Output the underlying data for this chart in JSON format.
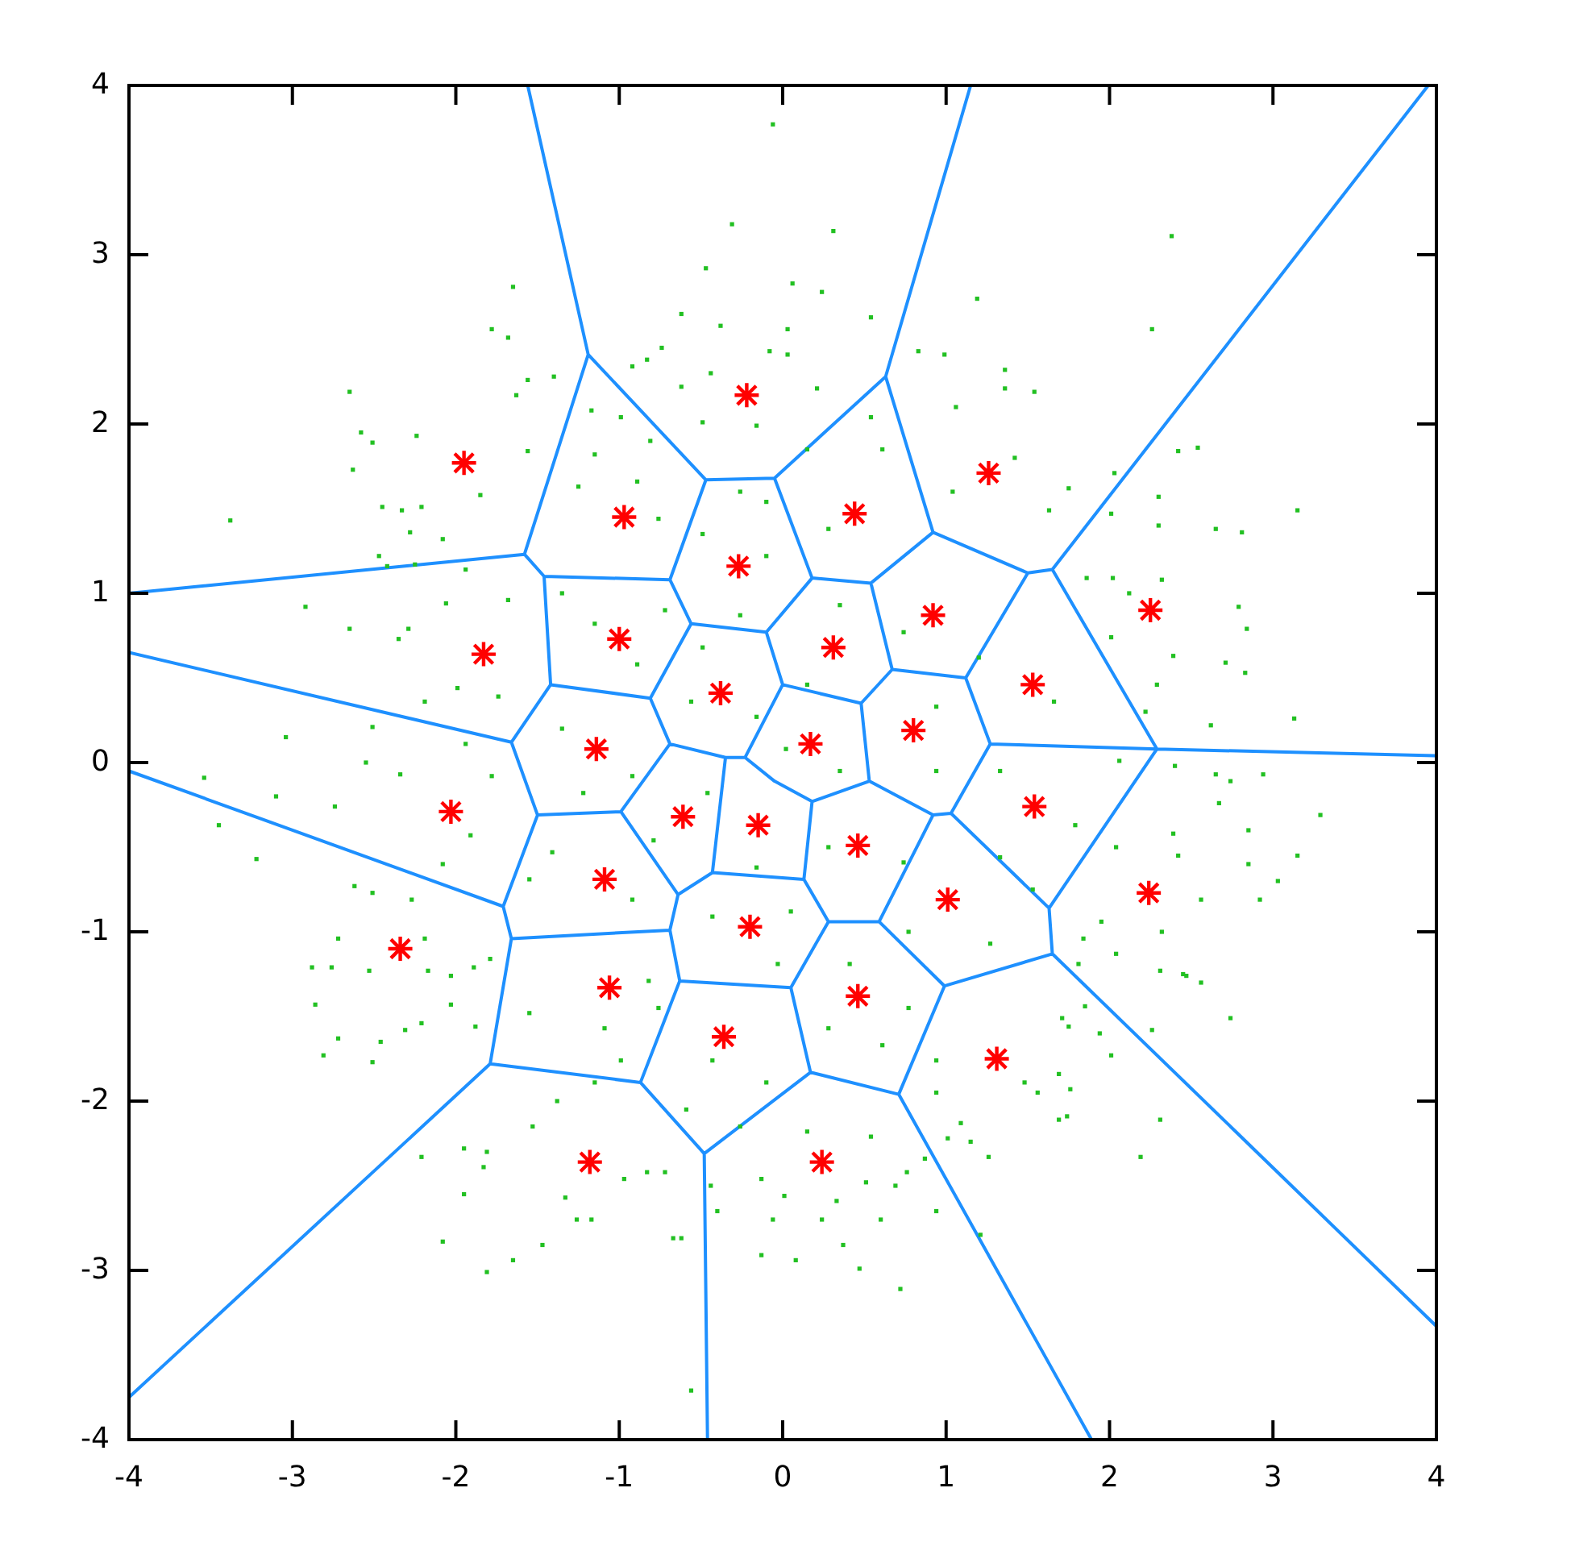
{
  "chart_data": {
    "type": "scatter",
    "xlim": [
      -4,
      4
    ],
    "ylim": [
      -4,
      4
    ],
    "xticks": [
      -4,
      -3,
      -2,
      -1,
      0,
      1,
      2,
      3,
      4
    ],
    "yticks": [
      -4,
      -3,
      -2,
      -1,
      0,
      1,
      2,
      3,
      4
    ],
    "series": [
      {
        "type": "line",
        "color": "#1e90ff",
        "marker": "none",
        "line_style": "solid",
        "x": [
          -1.56,
          -1.19,
          -1.58,
          -4,
          null,
          -1.19,
          -0.47,
          -0.05,
          0.63,
          1.15,
          null,
          0.63,
          0.92,
          1.5,
          1.65,
          3.95,
          null,
          1.65,
          2.29,
          4,
          null,
          1.5,
          1.12,
          0.67,
          0.54,
          0.92,
          null,
          1.12,
          1.27,
          2.29,
          1.63,
          1.65,
          4,
          null,
          1.63,
          1.03,
          1.27,
          null,
          1.03,
          0.92,
          0.53,
          0.48,
          0.67,
          null,
          0.92,
          0.59,
          0.99,
          1.65,
          null,
          0.59,
          0.28,
          0.13,
          0.18,
          0.53,
          null,
          0.54,
          0.18,
          -0.05,
          null,
          0.18,
          -0.1,
          0,
          0.48,
          null,
          0,
          -0.23,
          -0.05,
          0.18,
          null,
          -0.23,
          -0.35,
          -0.69,
          -0.81,
          -0.56,
          -0.1,
          null,
          -0.35,
          -0.43,
          0.13,
          null,
          -0.43,
          -0.64,
          -0.99,
          -0.69,
          null,
          -0.56,
          -0.69,
          -0.47,
          null,
          -0.69,
          -1.46,
          -1.58,
          null,
          -1.46,
          -1.42,
          -0.81,
          null,
          -1.42,
          -1.66,
          -4,
          null,
          -1.66,
          -1.5,
          -0.99,
          null,
          -1.5,
          -1.71,
          -4,
          null,
          -1.71,
          -1.66,
          -0.69,
          -0.64,
          null,
          -1.66,
          -1.79,
          -4,
          null,
          -1.79,
          -0.87,
          -0.63,
          -0.69,
          null,
          -0.63,
          0.05,
          0.28,
          null,
          0.05,
          0.17,
          0.71,
          0.99,
          null,
          0.71,
          1.89,
          null,
          0.17,
          -0.48,
          -0.87,
          null,
          -0.48,
          -0.46
        ],
        "values": [
          4,
          2.41,
          1.23,
          1,
          null,
          2.41,
          1.67,
          1.68,
          2.28,
          4,
          null,
          2.28,
          1.36,
          1.12,
          1.14,
          4,
          null,
          1.14,
          0.08,
          0.04,
          null,
          1.12,
          0.5,
          0.55,
          1.06,
          1.36,
          null,
          0.5,
          0.11,
          0.08,
          -0.86,
          -1.13,
          -3.33,
          null,
          -0.86,
          -0.3,
          0.11,
          null,
          -0.3,
          -0.31,
          -0.11,
          0.35,
          0.55,
          null,
          -0.31,
          -0.94,
          -1.32,
          -1.13,
          null,
          -0.94,
          -0.94,
          -0.69,
          -0.23,
          -0.11,
          null,
          1.06,
          1.09,
          1.68,
          null,
          1.09,
          0.77,
          0.46,
          0.35,
          null,
          0.46,
          0.03,
          -0.11,
          -0.23,
          null,
          0.03,
          0.03,
          0.11,
          0.38,
          0.82,
          0.77,
          null,
          0.03,
          -0.65,
          -0.69,
          null,
          -0.65,
          -0.78,
          -0.29,
          0.11,
          null,
          0.82,
          1.08,
          1.67,
          null,
          1.08,
          1.1,
          1.23,
          null,
          1.1,
          0.46,
          0.38,
          null,
          0.46,
          0.12,
          0.65,
          null,
          0.12,
          -0.31,
          -0.29,
          null,
          -0.31,
          -0.85,
          -0.05,
          null,
          -0.85,
          -1.04,
          -0.99,
          -0.78,
          null,
          -1.04,
          -1.78,
          -3.75,
          null,
          -1.78,
          -1.89,
          -1.29,
          -0.99,
          null,
          -1.29,
          -1.33,
          -0.94,
          null,
          -1.33,
          -1.83,
          -1.96,
          -1.32,
          null,
          -1.96,
          -4,
          null,
          -1.83,
          -2.31,
          -1.89,
          null,
          -2.31,
          -4
        ]
      },
      {
        "color": "#22c022",
        "marker": "square",
        "x": [
          -0.06,
          -0.31,
          -0.47,
          -1.65,
          -0.62,
          -0.38,
          -1.78,
          -1.68,
          -0.74,
          -2.65,
          -1.56,
          -1.4,
          -1.63,
          -2.58,
          -2.51,
          -2.24,
          -2.63,
          -3.38,
          -2.45,
          -2.33,
          -2.21,
          -1.85,
          -1.56,
          -1.15,
          -1.17,
          -0.92,
          -0.83,
          -0.08,
          -0.44,
          -0.62,
          -0.49,
          -0.81,
          -0.16,
          -0.99,
          0.31,
          2.38,
          0.06,
          0.24,
          1.19,
          0.54,
          2.26,
          0.03,
          0.03,
          0.83,
          0.99,
          1.36,
          1.36,
          1.54,
          0.21,
          1.06,
          0.54,
          2.42,
          2.54,
          3.15,
          2.3,
          2.65,
          2.81,
          2.3,
          1.75,
          2.01,
          1.42,
          1.63,
          2.03,
          -2.92,
          -2.65,
          -3.04,
          -3.54,
          -3.45,
          -3.1,
          -3.22,
          -2.74,
          -2.55,
          -2.51,
          -2.35,
          -2.29,
          -2.47,
          -2.42,
          -2.25,
          -2.28,
          -2.08,
          -2.06,
          -1.99,
          -2.19,
          -1.94,
          -2.62,
          -2.51,
          -2.27,
          -2.72,
          -2.88,
          -2.76,
          -2.53,
          -2.03,
          -1.89,
          -1.79,
          -2.19,
          -2.17,
          -2.08,
          -1.91,
          -2.34,
          -1.78,
          -1.74,
          -1.68,
          -1.94,
          -2.86,
          -2.81,
          -2.72,
          -2.46,
          -2.51,
          -2.31,
          -2.21,
          -2.03,
          -1.88,
          -2.21,
          -1.95,
          -1.81,
          -1.83,
          -1.95,
          -2.08,
          -1.81,
          -1.65,
          -1.47,
          -1.53,
          -1.38,
          -1.33,
          -1.26,
          -1.17,
          -0.97,
          -0.72,
          -0.83,
          -0.67,
          -0.62,
          -0.56,
          -0.4,
          -0.13,
          -0.13,
          -0.06,
          -0.44,
          0.08,
          0.37,
          0.47,
          0.72,
          0.24,
          0.6,
          0.94,
          0.01,
          0.33,
          0.51,
          0.69,
          0.76,
          1.21,
          1.26,
          1.15,
          2.19,
          2.31,
          1.69,
          1.74,
          1.76,
          1.69,
          1.48,
          1.56,
          2.01,
          1.94,
          2.26,
          2.74,
          1.75,
          1.71,
          2.56,
          2.47,
          1.85,
          0.94,
          1.09,
          1.01,
          0.87,
          2.79,
          2.84,
          3.13,
          2.71,
          2.83,
          2.62,
          2.39,
          2.29,
          2.22,
          2.12,
          2.32,
          2.01,
          2.02,
          1.86,
          3.29,
          3.15,
          3.03,
          2.92,
          2.85,
          2.85,
          2.94,
          2.74,
          2.65,
          2.67,
          2.39,
          2.56,
          2.42,
          2.4,
          2.32,
          2.31,
          2.45,
          2.04,
          1.95,
          1.84,
          1.81,
          2.04,
          2.06,
          -1.35,
          -1.15,
          -0.89,
          -0.72,
          -0.49,
          -0.26,
          -0.49,
          -0.1,
          -1.35,
          -0.92,
          -1.22,
          -0.56,
          -0.16,
          -0.79,
          -0.46,
          -0.16,
          -1.41,
          -0.92,
          -0.43,
          -0.03,
          -1.55,
          -0.82,
          0.35,
          0.74,
          1.2,
          1.66,
          0.15,
          0.94,
          0.02,
          0.35,
          0.94,
          1.33,
          1.79,
          0.28,
          0.74,
          1.33,
          0.05,
          0.77,
          1.27,
          0.41,
          1.53,
          -0.1,
          0.15,
          0.61,
          1.04,
          0.28,
          -0.89,
          -0.26,
          -0.76,
          -1.25,
          -1.55,
          -1.09,
          -0.99,
          -0.76,
          -0.43,
          -0.1,
          -0.26,
          -0.59,
          -1.15,
          0.28,
          0.61,
          0.77,
          0.15,
          0.54,
          0.94
        ],
        "values": [
          3.77,
          3.18,
          2.92,
          2.81,
          2.65,
          2.58,
          2.56,
          2.51,
          2.45,
          2.19,
          2.26,
          2.28,
          2.17,
          1.95,
          1.89,
          1.93,
          1.73,
          1.43,
          1.51,
          1.49,
          1.51,
          1.58,
          1.84,
          1.82,
          2.08,
          2.34,
          2.38,
          2.43,
          2.3,
          2.22,
          2.01,
          1.9,
          1.99,
          2.04,
          3.14,
          3.11,
          2.83,
          2.78,
          2.74,
          2.63,
          2.56,
          2.56,
          2.41,
          2.43,
          2.41,
          2.32,
          2.21,
          2.19,
          2.21,
          2.1,
          2.04,
          1.84,
          1.86,
          1.49,
          1.57,
          1.38,
          1.36,
          1.4,
          1.62,
          1.47,
          1.8,
          1.49,
          1.71,
          0.92,
          0.79,
          0.15,
          -0.09,
          -0.37,
          -0.2,
          -0.57,
          -0.26,
          0,
          0.21,
          0.73,
          0.79,
          1.22,
          1.16,
          1.17,
          1.36,
          1.32,
          0.94,
          0.44,
          0.36,
          0.11,
          -0.73,
          -0.77,
          -0.81,
          -1.04,
          -1.21,
          -1.21,
          -1.23,
          -1.26,
          -1.21,
          -1.16,
          -1.04,
          -1.23,
          -0.6,
          -0.43,
          -0.07,
          -0.08,
          0.39,
          0.96,
          1.14,
          -1.43,
          -1.73,
          -1.63,
          -1.65,
          -1.77,
          -1.58,
          -1.54,
          -1.43,
          -1.56,
          -2.33,
          -2.28,
          -2.3,
          -2.39,
          -2.55,
          -2.83,
          -3.01,
          -2.94,
          -2.85,
          -2.15,
          -2,
          -2.57,
          -2.7,
          -2.7,
          -2.46,
          -2.42,
          -2.42,
          -2.81,
          -2.81,
          -3.71,
          -2.65,
          -2.46,
          -2.91,
          -2.7,
          -2.5,
          -2.94,
          -2.85,
          -2.99,
          -3.11,
          -2.7,
          -2.7,
          -2.65,
          -2.56,
          -2.59,
          -2.48,
          -2.5,
          -2.42,
          -2.79,
          -2.33,
          -2.24,
          -2.33,
          -2.11,
          -2.11,
          -2.09,
          -1.93,
          -1.84,
          -1.89,
          -1.95,
          -1.73,
          -1.6,
          -1.58,
          -1.51,
          -1.56,
          -1.51,
          -1.3,
          -1.26,
          -1.44,
          -1.95,
          -2.13,
          -2.22,
          -2.34,
          0.92,
          0.79,
          0.26,
          0.59,
          0.53,
          0.22,
          0.63,
          0.46,
          0.3,
          1,
          1.08,
          0.74,
          1.09,
          1.09,
          -0.31,
          -0.55,
          -0.7,
          -0.81,
          -0.6,
          -0.4,
          -0.07,
          -0.11,
          -0.07,
          -0.24,
          -0.42,
          -0.81,
          -0.55,
          -0.02,
          -1,
          -1.23,
          -1.25,
          -1.13,
          -0.94,
          -1.04,
          -1.19,
          -0.5,
          0.01,
          1,
          0.82,
          0.58,
          0.9,
          0.68,
          0.87,
          1.35,
          1.22,
          0.2,
          -0.08,
          -0.18,
          0.36,
          0.27,
          -0.46,
          -0.18,
          -0.62,
          -0.53,
          -0.81,
          -0.91,
          -1.19,
          -0.69,
          -1.29,
          0.93,
          0.77,
          0.62,
          0.36,
          0.46,
          0.33,
          0.08,
          -0.05,
          -0.05,
          -0.05,
          -0.37,
          -0.5,
          -0.59,
          -0.56,
          -0.88,
          -1,
          -1.07,
          -1.19,
          -0.75,
          1.54,
          1.85,
          1.85,
          1.6,
          1.38,
          1.66,
          1.6,
          1.44,
          1.63,
          -1.48,
          -1.57,
          -1.76,
          -1.45,
          -1.76,
          -1.89,
          -2.15,
          -2.05,
          -1.89,
          -1.57,
          -1.67,
          -1.45,
          -2.18,
          -2.21,
          -1.76
        ]
      },
      {
        "color": "#ff0000",
        "marker": "cross",
        "x": [
          -0.22,
          -1.95,
          -0.97,
          0.44,
          1.26,
          -1.83,
          -1,
          -0.27,
          -0.38,
          -1.14,
          -2.03,
          -0.61,
          -0.15,
          -1.09,
          -0.2,
          -2.34,
          -1.06,
          0.92,
          0.31,
          2.25,
          1.53,
          0.8,
          0.17,
          1.54,
          0.46,
          1.01,
          2.24,
          -0.36,
          -1.18,
          0.46,
          1.31,
          0.24
        ],
        "values": [
          2.17,
          1.77,
          1.45,
          1.47,
          1.71,
          0.64,
          0.73,
          1.16,
          0.41,
          0.08,
          -0.29,
          -0.32,
          -0.37,
          -0.69,
          -0.97,
          -1.1,
          -1.33,
          0.87,
          0.68,
          0.9,
          0.46,
          0.19,
          0.11,
          -0.26,
          -0.49,
          -0.81,
          -0.77,
          -1.62,
          -2.36,
          -1.38,
          -1.75,
          -2.36
        ]
      }
    ]
  }
}
